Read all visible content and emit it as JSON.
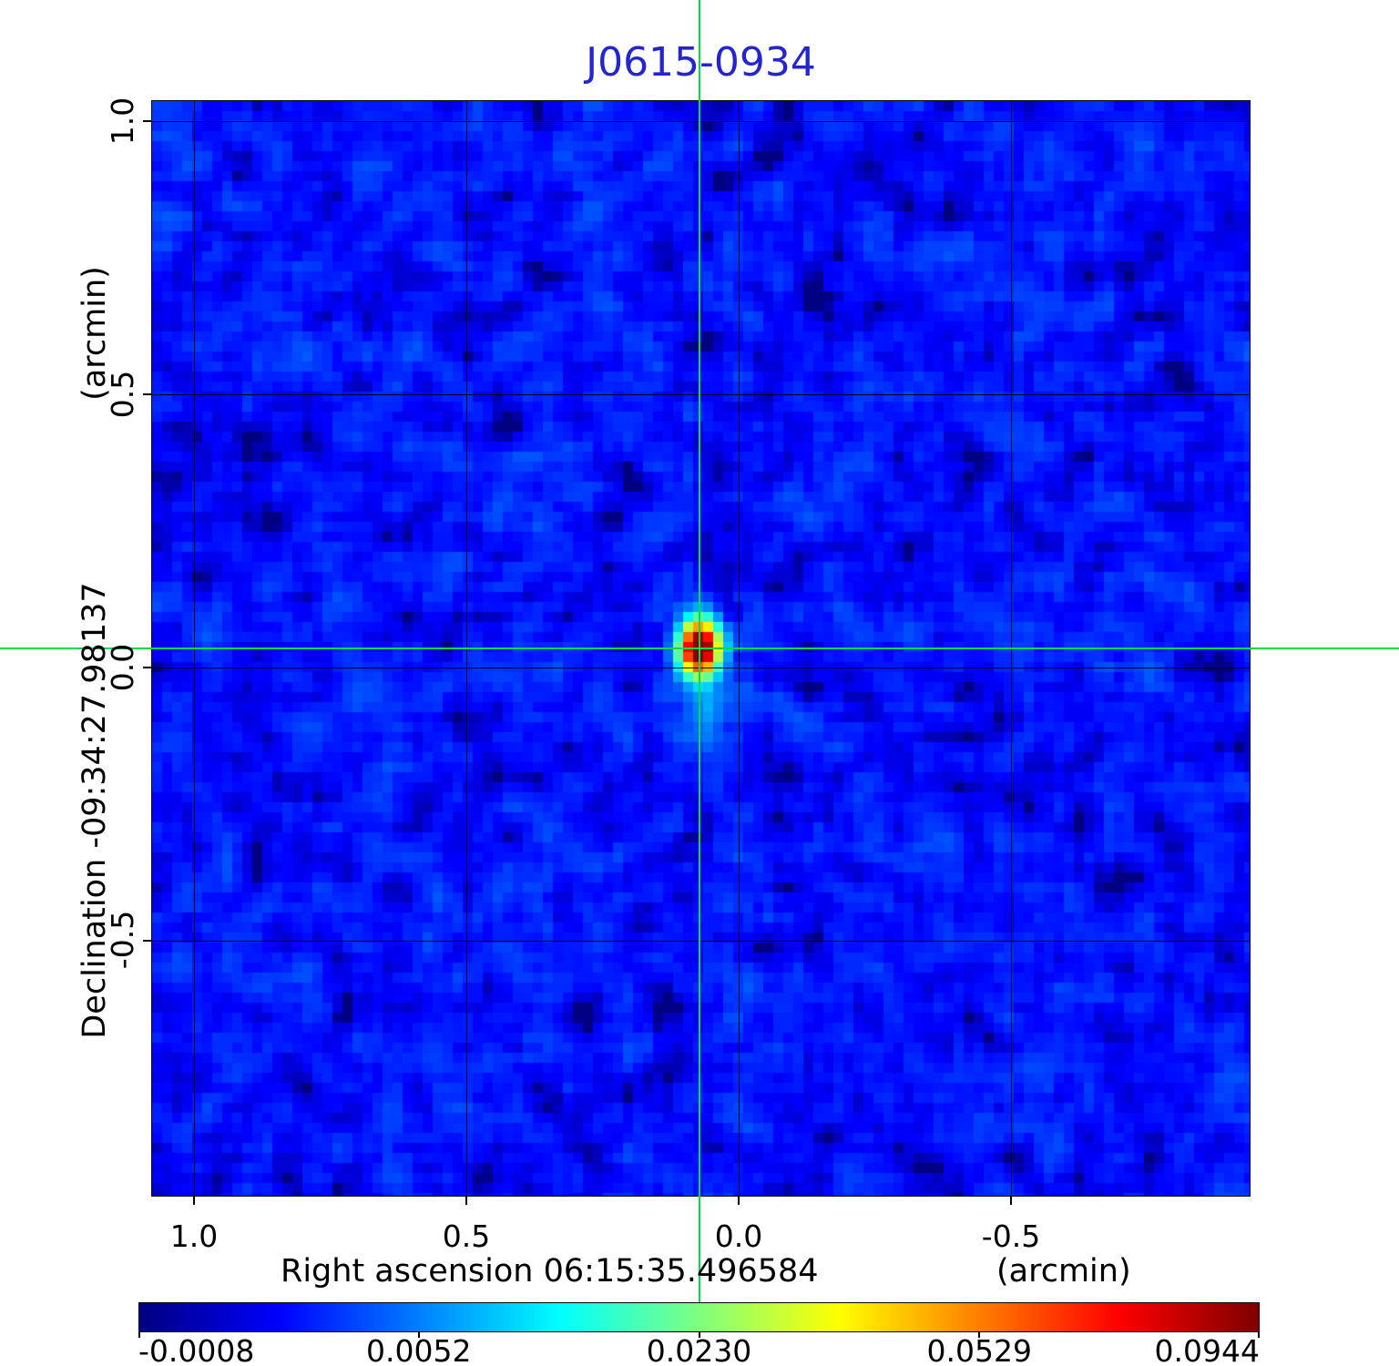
{
  "title": {
    "text": "J0615-0934",
    "color": "#2525cf"
  },
  "axes": {
    "y_unit_label": "(arcmin)",
    "y_title": "Declination  -09:34:27.98137",
    "x_title": "Right ascension  06:15:35.496584",
    "x_unit_label": "(arcmin)",
    "x_tick_labels": [
      "1.0",
      "0.5",
      "0.0",
      "-0.5"
    ],
    "y_tick_labels": [
      "1.0",
      "0.5",
      "0.0",
      "-0.5"
    ]
  },
  "colorbar": {
    "tick_labels": [
      "-0.0008",
      "0.0052",
      "0.0230",
      "0.0529",
      "0.0944"
    ]
  },
  "chart_data": {
    "type": "heatmap",
    "title": "J0615-0934",
    "xlabel": "Right ascension  06:15:35.496584  (arcmin)",
    "ylabel": "Declination  -09:34:27.98137  (arcmin)",
    "x_ticks_arcmin": [
      1.0,
      0.5,
      0.0,
      -0.5
    ],
    "y_ticks_arcmin": [
      1.0,
      0.5,
      0.0,
      -0.5
    ],
    "xlim_arcmin": [
      1.077,
      -0.938
    ],
    "ylim_arcmin": [
      -0.967,
      1.037
    ],
    "grid": true,
    "colormap": "jet",
    "intensity_scale": "sqrt",
    "vmin": -0.0008,
    "vmax": 0.0944,
    "colorbar_ticks": [
      -0.0008,
      0.0052,
      0.023,
      0.0529,
      0.0944
    ],
    "crosshair": {
      "x_arcmin": 0.072,
      "y_arcmin": 0.035,
      "color": "#00dd48"
    },
    "source": {
      "ra": "06:15:35.496584",
      "dec": "-09:34:27.98137",
      "x_arcmin": 0.072,
      "y_arcmin": 0.035,
      "peak": 0.0944,
      "fwhm_x_arcmin": 0.05,
      "fwhm_y_arcmin": 0.067,
      "shape": "gaussian"
    },
    "background_mean": 0.0009,
    "noise_rms": 0.0008
  }
}
